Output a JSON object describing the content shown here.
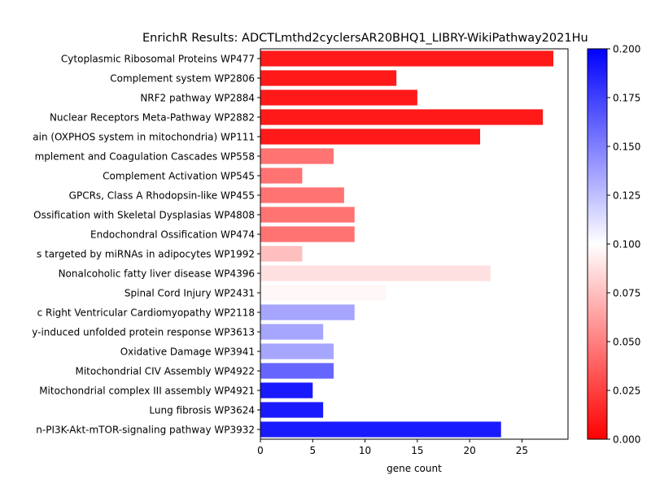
{
  "chart_data": {
    "type": "bar",
    "orientation": "horizontal",
    "title": "EnrichR Results: ADCTLmthd2cyclersAR20BHQ1_LIBRY-WikiPathway2021Hu",
    "xlabel": "gene count",
    "ylabel": "",
    "xlim": [
      0,
      29.4
    ],
    "xticks": [
      0,
      5,
      10,
      15,
      20,
      25
    ],
    "grid": false,
    "categories": [
      "Cytoplasmic Ribosomal Proteins WP477",
      "Complement system WP2806",
      "NRF2 pathway WP2884",
      "Nuclear Receptors Meta-Pathway WP2882",
      "ain (OXPHOS system in mitochondria) WP111",
      "mplement and Coagulation Cascades WP558",
      "Complement Activation WP545",
      "GPCRs, Class A Rhodopsin-like WP455",
      "Ossification with Skeletal Dysplasias WP4808",
      "Endochondral Ossification WP474",
      "s targeted by miRNAs in adipocytes WP1992",
      "Nonalcoholic fatty liver disease WP4396",
      "Spinal Cord Injury WP2431",
      "c Right Ventricular Cardiomyopathy WP2118",
      "y-induced unfolded protein response WP3613",
      "Oxidative Damage WP3941",
      "Mitochondrial CIV Assembly WP4922",
      "Mitochondrial complex III assembly WP4921",
      "Lung fibrosis WP3624",
      "n-PI3K-Akt-mTOR-signaling pathway WP3932"
    ],
    "values": [
      28,
      13,
      15,
      27,
      21,
      7,
      4,
      8,
      9,
      9,
      4,
      22,
      12,
      9,
      6,
      7,
      7,
      5,
      6,
      23
    ],
    "color_values": [
      0.01,
      0.01,
      0.01,
      0.01,
      0.01,
      0.045,
      0.045,
      0.045,
      0.045,
      0.045,
      0.075,
      0.088,
      0.097,
      0.135,
      0.135,
      0.135,
      0.16,
      0.19,
      0.19,
      0.19
    ],
    "colorbar": {
      "colormap": "bwr_r",
      "colors": [
        "#ff0000",
        "#ffffff",
        "#0000ff"
      ],
      "range": [
        0.0,
        0.2
      ],
      "ticks": [
        "0.000",
        "0.025",
        "0.050",
        "0.075",
        "0.100",
        "0.125",
        "0.150",
        "0.175",
        "0.200"
      ]
    }
  }
}
